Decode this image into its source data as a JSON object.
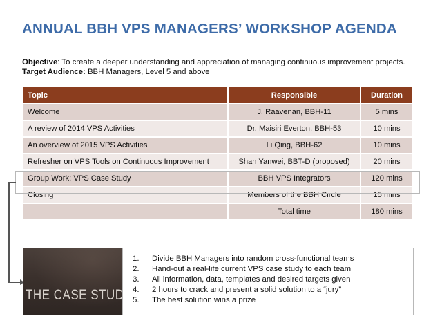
{
  "title": "ANNUAL BBH VPS MANAGERS’ WORKSHOP AGENDA",
  "objective": {
    "label": "Objective",
    "text": ": To create a deeper understanding and appreciation of managing continuous improvement projects."
  },
  "audience": {
    "label": "Target Audience:",
    "text": " BBH Managers, Level 5 and above"
  },
  "table": {
    "headers": {
      "topic": "Topic",
      "responsible": "Responsible",
      "duration": "Duration"
    },
    "rows": [
      {
        "topic": "Welcome",
        "responsible": "J. Raavenan, BBH-11",
        "duration": "5 mins"
      },
      {
        "topic": "A review of 2014 VPS Activities",
        "responsible": "Dr. Maisiri Everton, BBH-53",
        "duration": "10 mins"
      },
      {
        "topic": "An overview of 2015 VPS Activities",
        "responsible": "Li Qing, BBH-62",
        "duration": "10 mins"
      },
      {
        "topic": "Refresher on VPS Tools on Continuous Improvement",
        "responsible": "Shan Yanwei, BBT-D (proposed)",
        "duration": "20 mins"
      },
      {
        "topic": "Group Work: VPS Case Study",
        "responsible": "BBH VPS Integrators",
        "duration": "120 mins"
      },
      {
        "topic": "Closing",
        "responsible": "Members of the BBH Circle",
        "duration": "15 mins"
      }
    ],
    "total": {
      "label": "Total time",
      "duration": "180 mins"
    }
  },
  "case_image": {
    "label": "THE CASE STUDY"
  },
  "steps": [
    {
      "num": "1.",
      "text": "Divide BBH Managers into random cross-functional teams"
    },
    {
      "num": "2.",
      "text": "Hand-out a real-life current VPS case study to each team"
    },
    {
      "num": "3.",
      "text": "All information, data, templates and desired targets given"
    },
    {
      "num": "4.",
      "text": "2 hours to crack and present a solid solution to a “jury”"
    },
    {
      "num": "5.",
      "text": "The best solution wins a prize"
    }
  ]
}
